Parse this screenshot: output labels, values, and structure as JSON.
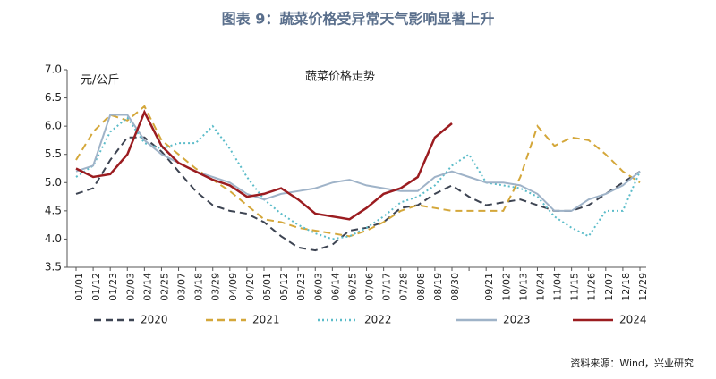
{
  "chart_data": {
    "type": "line",
    "title": "图表 9：蔬菜价格受异常天气影响显著上升",
    "subtitle": "蔬菜价格走势",
    "y_label": "元/公斤",
    "source": "资料来源：Wind，兴业研究",
    "categories": [
      "01/01",
      "01/12",
      "01/23",
      "02/03",
      "02/14",
      "02/25",
      "03/07",
      "03/18",
      "03/29",
      "04/09",
      "04/20",
      "05/01",
      "05/12",
      "05/23",
      "06/03",
      "06/14",
      "06/25",
      "07/06",
      "07/17",
      "07/28",
      "08/08",
      "08/19",
      "08/30",
      null,
      "09/21",
      "10/02",
      "10/13",
      "10/24",
      "11/04",
      "11/15",
      "11/26",
      "12/07",
      "12/18",
      "12/29"
    ],
    "ylim": [
      3.5,
      7
    ],
    "yticks": [
      3.5,
      {
        "value": 4,
        "label": "4.0"
      },
      4.5,
      {
        "value": 5,
        "label": "5.0"
      },
      5.5,
      {
        "value": 6,
        "label": "6.0"
      },
      6.5,
      {
        "value": 7,
        "label": "7.0"
      }
    ],
    "grid": false,
    "legend": "bottom",
    "series": [
      {
        "name": "2020",
        "color": "#3d4452",
        "style": "dashed",
        "values": [
          4.8,
          4.9,
          5.4,
          5.8,
          5.8,
          5.55,
          5.2,
          4.85,
          4.6,
          4.5,
          4.45,
          4.3,
          4.05,
          3.85,
          3.8,
          3.9,
          4.15,
          4.2,
          4.3,
          4.55,
          4.6,
          4.8,
          4.95,
          4.75,
          4.6,
          4.65,
          4.7,
          4.6,
          4.5,
          4.5,
          4.6,
          4.8,
          5.0,
          5.2
        ]
      },
      {
        "name": "2021",
        "color": "#d4a73a",
        "style": "dashed",
        "values": [
          5.4,
          5.9,
          6.2,
          6.1,
          6.35,
          5.75,
          5.5,
          5.25,
          5.05,
          4.85,
          4.6,
          4.35,
          4.3,
          4.2,
          4.15,
          4.1,
          4.05,
          4.15,
          4.3,
          4.5,
          4.6,
          4.55,
          4.5,
          4.5,
          4.5,
          4.5,
          5.1,
          6.0,
          5.65,
          5.8,
          5.75,
          5.5,
          5.2,
          5.0
        ]
      },
      {
        "name": "2022",
        "color": "#5bbcc9",
        "style": "dotted",
        "values": [
          5.1,
          5.3,
          5.9,
          6.15,
          5.7,
          5.6,
          5.7,
          5.7,
          6.0,
          5.6,
          5.1,
          4.7,
          4.45,
          4.25,
          4.1,
          4.0,
          4.05,
          4.2,
          4.4,
          4.65,
          4.75,
          4.95,
          5.3,
          5.5,
          5.0,
          4.95,
          4.9,
          4.75,
          4.4,
          4.2,
          4.05,
          4.5,
          4.5,
          5.2
        ]
      },
      {
        "name": "2023",
        "color": "#9fb3c8",
        "style": "solid",
        "values": [
          5.2,
          5.3,
          6.2,
          6.2,
          5.75,
          5.5,
          5.35,
          5.2,
          5.1,
          5.0,
          4.8,
          4.7,
          4.8,
          4.85,
          4.9,
          5.0,
          5.05,
          4.95,
          4.9,
          4.85,
          4.85,
          5.1,
          5.2,
          5.1,
          5.0,
          5.0,
          4.95,
          4.8,
          4.5,
          4.5,
          4.7,
          4.8,
          4.95,
          5.2
        ]
      },
      {
        "name": "2024",
        "color": "#9b1c20",
        "style": "solid",
        "values": [
          5.25,
          5.1,
          5.15,
          5.5,
          6.25,
          5.65,
          5.35,
          5.2,
          5.05,
          4.95,
          4.75,
          4.8,
          4.9,
          4.7,
          4.45,
          4.4,
          4.35,
          4.55,
          4.8,
          4.9,
          5.1,
          5.8,
          6.05,
          null,
          null,
          null,
          null,
          null,
          null,
          null,
          null,
          null,
          null,
          null
        ]
      }
    ]
  }
}
